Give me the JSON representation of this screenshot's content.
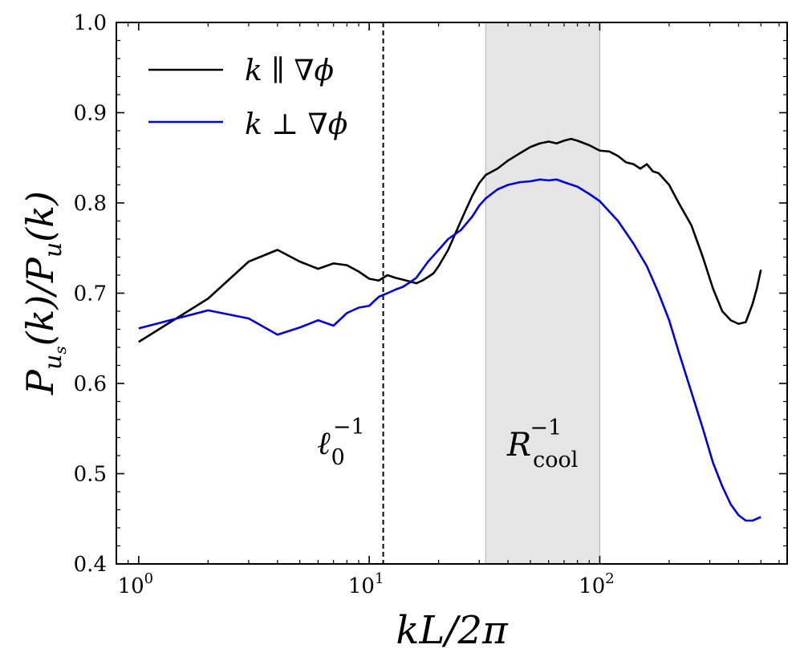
{
  "chart_data": {
    "type": "line",
    "xscale": "log",
    "xlim": [
      0.8,
      650
    ],
    "ylim": [
      0.4,
      1.0
    ],
    "xlabel": {
      "base": "kL/2π"
    },
    "ylabel": {
      "base": "P",
      "sub1": "u",
      "sub2": "s",
      "mid": "(k)/",
      "base2": "P",
      "sub3": "u",
      "tail": "(k)"
    },
    "x_tick_labels": [
      {
        "value": 1,
        "base": "10",
        "exp": "0"
      },
      {
        "value": 10,
        "base": "10",
        "exp": "1"
      },
      {
        "value": 100,
        "base": "10",
        "exp": "2"
      }
    ],
    "y_ticks": [
      0.4,
      0.5,
      0.6,
      0.7,
      0.8,
      0.9,
      1.0
    ],
    "y_tick_labels": [
      "0.4",
      "0.5",
      "0.6",
      "0.7",
      "0.8",
      "0.9",
      "1.0"
    ],
    "vline": {
      "x": 11.5,
      "style": "dashed",
      "label_base": "ℓ",
      "label_sub": "0",
      "label_sup": "−1"
    },
    "shaded_region": {
      "x0": 32,
      "x1": 100,
      "color": "#e5e5e5",
      "label_base": "R",
      "label_sub": "cool",
      "label_sup": "−1"
    },
    "legend_position": "upper-left",
    "series": [
      {
        "name": "k ∥ ∇φ",
        "legend_label": "k ∥ ∇ϕ",
        "color": "#000000",
        "points": [
          [
            1,
            0.646
          ],
          [
            2,
            0.694
          ],
          [
            3,
            0.735
          ],
          [
            4,
            0.748
          ],
          [
            5,
            0.735
          ],
          [
            6,
            0.727
          ],
          [
            7,
            0.733
          ],
          [
            8,
            0.731
          ],
          [
            9,
            0.724
          ],
          [
            10,
            0.716
          ],
          [
            11,
            0.714
          ],
          [
            12,
            0.72
          ],
          [
            13,
            0.717
          ],
          [
            14,
            0.715
          ],
          [
            15,
            0.713
          ],
          [
            16,
            0.711
          ],
          [
            17,
            0.714
          ],
          [
            18,
            0.718
          ],
          [
            19,
            0.722
          ],
          [
            20,
            0.73
          ],
          [
            22,
            0.748
          ],
          [
            24,
            0.77
          ],
          [
            26,
            0.79
          ],
          [
            28,
            0.808
          ],
          [
            30,
            0.822
          ],
          [
            32,
            0.831
          ],
          [
            36,
            0.838
          ],
          [
            40,
            0.847
          ],
          [
            45,
            0.855
          ],
          [
            50,
            0.862
          ],
          [
            55,
            0.866
          ],
          [
            60,
            0.868
          ],
          [
            65,
            0.866
          ],
          [
            70,
            0.869
          ],
          [
            75,
            0.871
          ],
          [
            80,
            0.869
          ],
          [
            90,
            0.864
          ],
          [
            100,
            0.858
          ],
          [
            110,
            0.857
          ],
          [
            120,
            0.852
          ],
          [
            130,
            0.845
          ],
          [
            140,
            0.843
          ],
          [
            150,
            0.838
          ],
          [
            160,
            0.843
          ],
          [
            170,
            0.835
          ],
          [
            180,
            0.833
          ],
          [
            200,
            0.82
          ],
          [
            220,
            0.8
          ],
          [
            250,
            0.775
          ],
          [
            280,
            0.74
          ],
          [
            310,
            0.705
          ],
          [
            340,
            0.68
          ],
          [
            370,
            0.67
          ],
          [
            400,
            0.666
          ],
          [
            430,
            0.668
          ],
          [
            460,
            0.688
          ],
          [
            480,
            0.705
          ],
          [
            500,
            0.726
          ]
        ]
      },
      {
        "name": "k ⊥ ∇φ",
        "legend_label": "k ⊥ ∇ϕ",
        "color": "#0000dd",
        "points": [
          [
            1,
            0.661
          ],
          [
            2,
            0.681
          ],
          [
            3,
            0.672
          ],
          [
            4,
            0.654
          ],
          [
            5,
            0.662
          ],
          [
            6,
            0.67
          ],
          [
            7,
            0.664
          ],
          [
            8,
            0.678
          ],
          [
            9,
            0.684
          ],
          [
            10,
            0.686
          ],
          [
            11,
            0.696
          ],
          [
            12,
            0.7
          ],
          [
            13,
            0.704
          ],
          [
            14,
            0.707
          ],
          [
            15,
            0.712
          ],
          [
            16,
            0.717
          ],
          [
            18,
            0.735
          ],
          [
            20,
            0.748
          ],
          [
            22,
            0.76
          ],
          [
            25,
            0.77
          ],
          [
            28,
            0.785
          ],
          [
            30,
            0.797
          ],
          [
            32,
            0.805
          ],
          [
            36,
            0.815
          ],
          [
            40,
            0.82
          ],
          [
            45,
            0.823
          ],
          [
            50,
            0.824
          ],
          [
            55,
            0.826
          ],
          [
            60,
            0.825
          ],
          [
            65,
            0.826
          ],
          [
            70,
            0.823
          ],
          [
            80,
            0.818
          ],
          [
            90,
            0.81
          ],
          [
            100,
            0.802
          ],
          [
            120,
            0.78
          ],
          [
            140,
            0.755
          ],
          [
            160,
            0.73
          ],
          [
            180,
            0.7
          ],
          [
            200,
            0.67
          ],
          [
            220,
            0.635
          ],
          [
            250,
            0.59
          ],
          [
            280,
            0.55
          ],
          [
            310,
            0.512
          ],
          [
            340,
            0.486
          ],
          [
            370,
            0.466
          ],
          [
            400,
            0.454
          ],
          [
            430,
            0.448
          ],
          [
            460,
            0.448
          ],
          [
            500,
            0.452
          ]
        ]
      }
    ]
  }
}
